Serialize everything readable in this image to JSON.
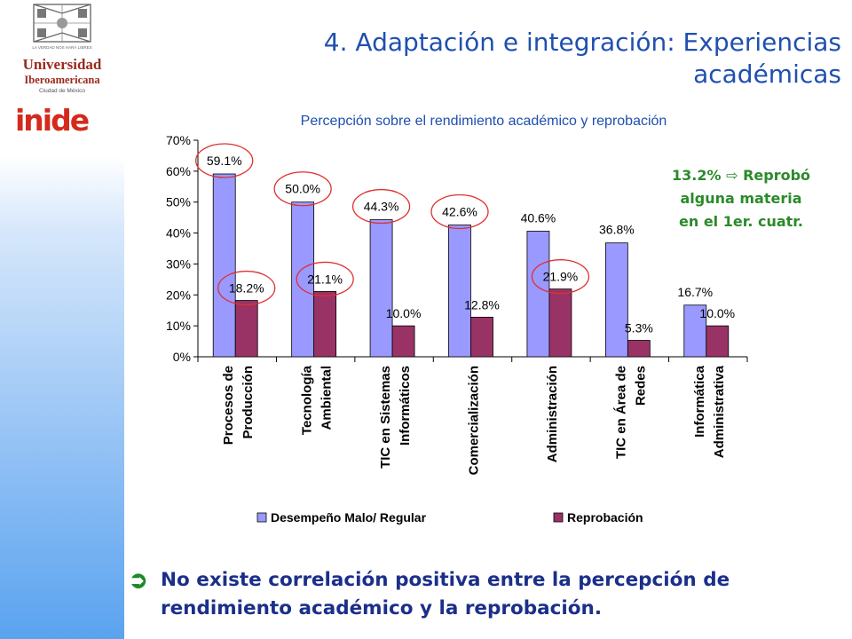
{
  "branding": {
    "university_line1": "Universidad",
    "university_line2": "Iberoamericana",
    "university_line3": "Ciudad de México",
    "department_logo": "inide",
    "crest_motto": "LA VERDAD NOS HARÁ LIBRES"
  },
  "slide": {
    "title_line1": "4. Adaptación e integración: Experiencias",
    "title_line2": "académicas"
  },
  "note": {
    "value": "13.2%",
    "arrow": "⇨",
    "line1_rest": "Reprobó",
    "line2": "alguna materia",
    "line3": "en el 1er. cuatr."
  },
  "conclusion": {
    "bullet": "➲",
    "text": "No existe correlación positiva entre la percepción de rendimiento académico y la reprobación."
  },
  "colors": {
    "series1": "#9999ff",
    "series2": "#993366",
    "highlight": "#e03030",
    "title_blue": "#1f4fb0",
    "note_green": "#2b8a2b"
  },
  "chart_data": {
    "type": "bar",
    "title": "Percepción sobre el rendimiento académico y reprobación",
    "categories": [
      [
        "Procesos de",
        "Producción"
      ],
      [
        "Tecnología",
        "Ambiental"
      ],
      [
        "TIC en Sistemas",
        "Informáticos"
      ],
      [
        "Comercialización"
      ],
      [
        "Administración"
      ],
      [
        "TIC en Área de",
        "Redes"
      ],
      [
        "Informática",
        "Administrativa"
      ]
    ],
    "series": [
      {
        "name": "Desempeño Malo/ Regular",
        "values": [
          59.1,
          50.0,
          44.3,
          42.6,
          40.6,
          36.8,
          16.7
        ],
        "labels": [
          "59.1%",
          "50.0%",
          "44.3%",
          "42.6%",
          "40.6%",
          "36.8%",
          "16.7%"
        ]
      },
      {
        "name": "Reprobación",
        "values": [
          18.2,
          21.1,
          10.0,
          12.8,
          21.9,
          5.3,
          10.0
        ],
        "labels": [
          "18.2%",
          "21.1%",
          "10.0%",
          "12.8%",
          "21.9%",
          "5.3%",
          "10.0%"
        ]
      }
    ],
    "y_ticks": [
      "0%",
      "10%",
      "20%",
      "30%",
      "40%",
      "50%",
      "60%",
      "70%"
    ],
    "ylim": [
      0,
      70
    ],
    "grid": false,
    "legend_position": "bottom",
    "circled_labels": {
      "series1": [
        0,
        1,
        2,
        3
      ],
      "series2": [
        0,
        1,
        4
      ]
    }
  }
}
